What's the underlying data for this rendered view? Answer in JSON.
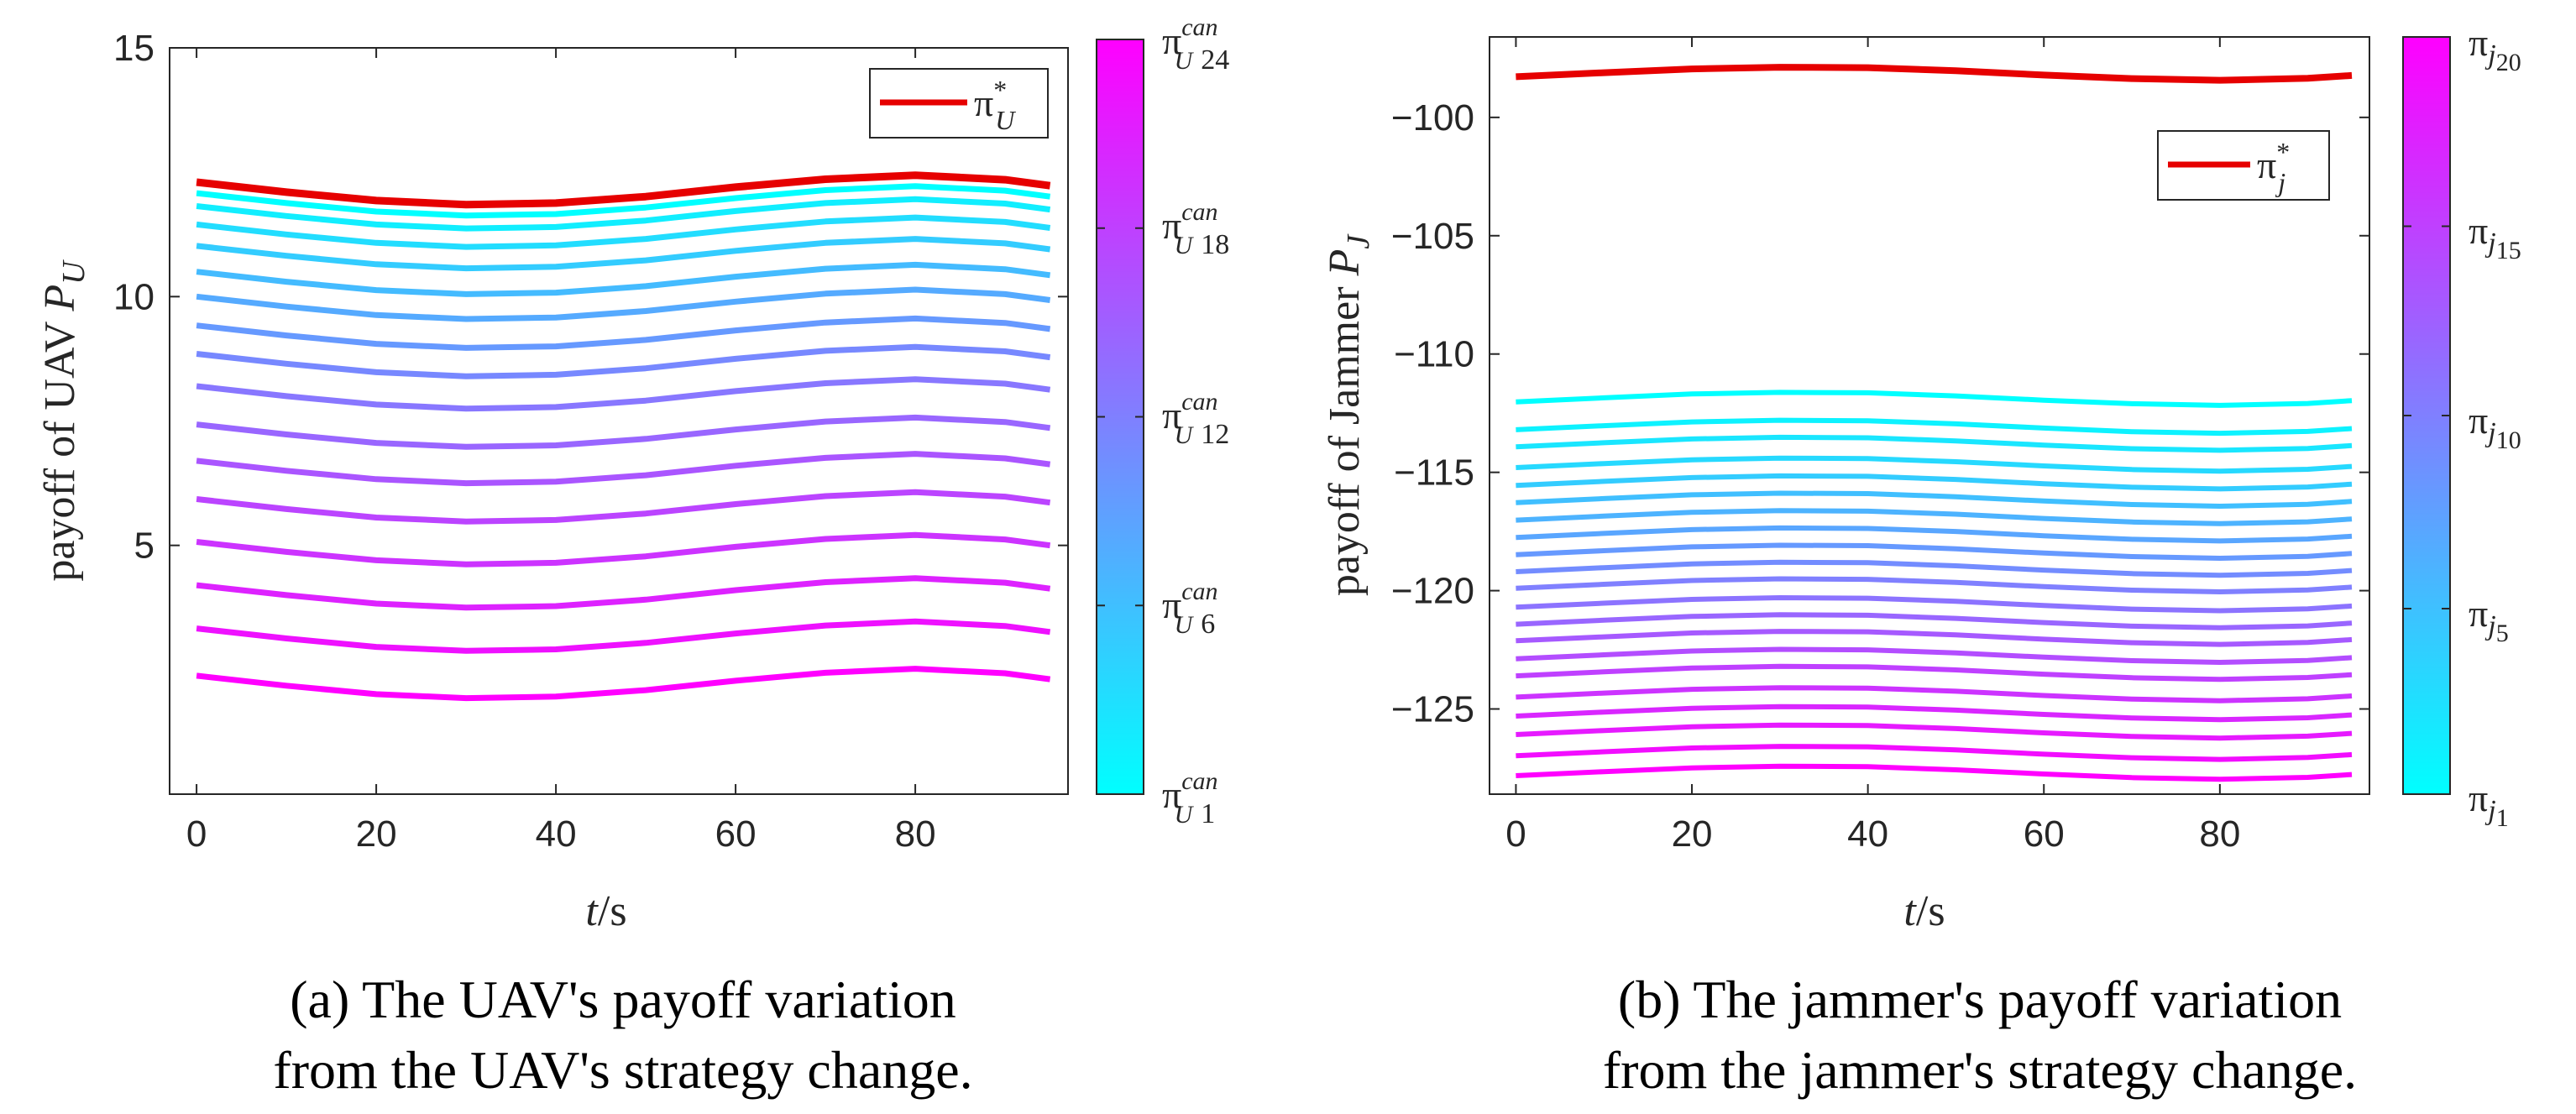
{
  "colors": {
    "optimal": "#e60000",
    "cmap_low": "#00ffff",
    "cmap_high": "#ff00ff",
    "axis": "#262626"
  },
  "chart_data": [
    {
      "type": "line",
      "panel": "a",
      "ylabel_prefix": "payoff of UAV",
      "ylabel_symbol": "P",
      "ylabel_sub": "U",
      "xlabel_var": "t",
      "xlabel_unit": "/s",
      "xlim": [
        -3,
        97
      ],
      "ylim": [
        0,
        15
      ],
      "xticks": [
        0,
        20,
        40,
        60,
        80
      ],
      "yticks": [
        5,
        10,
        15
      ],
      "x": [
        0,
        10,
        20,
        30,
        40,
        50,
        60,
        70,
        80,
        90,
        95
      ],
      "shape": [
        0.0,
        -0.2,
        -0.37,
        -0.45,
        -0.42,
        -0.29,
        -0.1,
        0.06,
        0.14,
        0.05,
        -0.07
      ],
      "series_offsets": [
        2.38,
        3.33,
        4.2,
        5.07,
        5.93,
        6.7,
        7.43,
        8.2,
        8.85,
        9.42,
        10.0,
        10.5,
        11.02,
        11.45,
        11.82,
        12.08
      ],
      "optimal": {
        "offset": 12.3,
        "legend": "π",
        "legend_sup": "*",
        "legend_sub": "U"
      },
      "colorbar": {
        "labels": [
          {
            "base": "π",
            "sup": "can",
            "sub": "U",
            "index": "1"
          },
          {
            "base": "π",
            "sup": "can",
            "sub": "U",
            "index": "6"
          },
          {
            "base": "π",
            "sup": "can",
            "sub": "U",
            "index": "12"
          },
          {
            "base": "π",
            "sup": "can",
            "sub": "U",
            "index": "18"
          },
          {
            "base": "π",
            "sup": "can",
            "sub": "U",
            "index": "24"
          }
        ]
      },
      "caption": [
        "(a)  The UAV's payoff variation",
        "from the UAV's strategy change."
      ]
    },
    {
      "type": "line",
      "panel": "b",
      "ylabel_prefix": "payoff of Jammer",
      "ylabel_symbol": "P",
      "ylabel_sub": "J",
      "xlabel_var": "t",
      "xlabel_unit": "/s",
      "xlim": [
        -3,
        97
      ],
      "ylim": [
        -128.6,
        -96.6
      ],
      "xticks": [
        0,
        20,
        40,
        60,
        80
      ],
      "yticks": [
        -100,
        -105,
        -110,
        -115,
        -120,
        -125
      ],
      "x": [
        0,
        10,
        20,
        30,
        40,
        50,
        60,
        70,
        80,
        90,
        95
      ],
      "shape": [
        0.0,
        0.17,
        0.33,
        0.4,
        0.38,
        0.25,
        0.07,
        -0.08,
        -0.15,
        -0.07,
        0.05
      ],
      "series_offsets": [
        -127.82,
        -126.98,
        -126.08,
        -125.3,
        -124.5,
        -123.6,
        -122.88,
        -122.12,
        -121.42,
        -120.7,
        -119.9,
        -119.2,
        -118.48,
        -117.75,
        -117.02,
        -116.28,
        -115.55,
        -114.8,
        -113.92,
        -113.2,
        -112.02
      ],
      "optimal": {
        "offset": -98.28,
        "legend": "π",
        "legend_sup": "*",
        "legend_sub": "j"
      },
      "colorbar": {
        "labels": [
          {
            "base": "π",
            "sub": "j",
            "index": "1"
          },
          {
            "base": "π",
            "sub": "j",
            "index": "5"
          },
          {
            "base": "π",
            "sub": "j",
            "index": "10"
          },
          {
            "base": "π",
            "sub": "j",
            "index": "15"
          },
          {
            "base": "π",
            "sub": "j",
            "index": "20"
          }
        ]
      },
      "caption": [
        "(b)  The jammer's payoff variation",
        "from the jammer's strategy change."
      ]
    }
  ]
}
